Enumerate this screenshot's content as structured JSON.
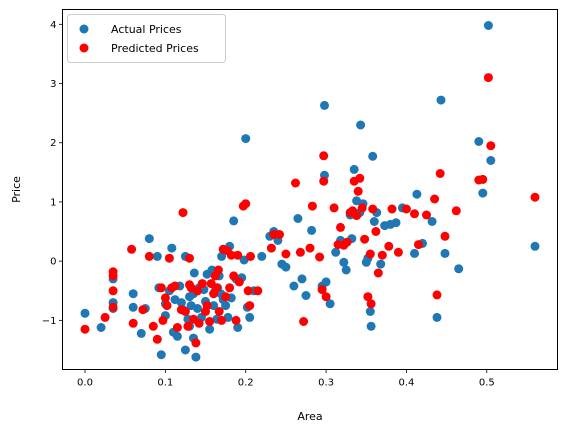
{
  "chart_data": {
    "type": "scatter",
    "title": "",
    "xlabel": "Area",
    "ylabel": "Price",
    "xlim": [
      -0.028,
      0.588
    ],
    "ylim": [
      -1.83,
      4.25
    ],
    "xticks": [
      0.0,
      0.1,
      0.2,
      0.3,
      0.4,
      0.5
    ],
    "xtick_labels": [
      "0.0",
      "0.1",
      "0.2",
      "0.3",
      "0.4",
      "0.5"
    ],
    "yticks": [
      -1,
      0,
      1,
      2,
      3,
      4
    ],
    "ytick_labels": [
      "−1",
      "0",
      "1",
      "2",
      "3",
      "4"
    ],
    "grid": false,
    "legend_position": "top-left",
    "series": [
      {
        "name": "Actual Prices",
        "color": "#1f77b4",
        "points": [
          [
            0.0,
            -0.88
          ],
          [
            0.02,
            -1.12
          ],
          [
            0.035,
            -0.3
          ],
          [
            0.035,
            -0.7
          ],
          [
            0.035,
            -0.8
          ],
          [
            0.06,
            -0.55
          ],
          [
            0.06,
            -0.78
          ],
          [
            0.07,
            -1.22
          ],
          [
            0.075,
            -0.8
          ],
          [
            0.08,
            0.38
          ],
          [
            0.09,
            0.08
          ],
          [
            0.092,
            -0.45
          ],
          [
            0.095,
            -1.58
          ],
          [
            0.1,
            -0.72
          ],
          [
            0.1,
            -0.92
          ],
          [
            0.105,
            -0.5
          ],
          [
            0.108,
            0.22
          ],
          [
            0.11,
            -1.2
          ],
          [
            0.112,
            -0.65
          ],
          [
            0.115,
            -1.27
          ],
          [
            0.118,
            -0.42
          ],
          [
            0.12,
            -0.7
          ],
          [
            0.122,
            -0.82
          ],
          [
            0.125,
            -1.5
          ],
          [
            0.125,
            0.08
          ],
          [
            0.128,
            -0.98
          ],
          [
            0.13,
            -1.1
          ],
          [
            0.13,
            -0.6
          ],
          [
            0.132,
            -0.75
          ],
          [
            0.135,
            -0.55
          ],
          [
            0.135,
            -1.3
          ],
          [
            0.136,
            -0.2
          ],
          [
            0.138,
            -1.62
          ],
          [
            0.14,
            -0.8
          ],
          [
            0.142,
            -0.45
          ],
          [
            0.145,
            -0.95
          ],
          [
            0.148,
            -0.48
          ],
          [
            0.15,
            -0.68
          ],
          [
            0.152,
            -0.22
          ],
          [
            0.155,
            -1.15
          ],
          [
            0.158,
            -0.15
          ],
          [
            0.16,
            -0.75
          ],
          [
            0.162,
            -0.5
          ],
          [
            0.164,
            -0.98
          ],
          [
            0.165,
            -0.45
          ],
          [
            0.167,
            -0.25
          ],
          [
            0.169,
            -0.55
          ],
          [
            0.17,
            0.08
          ],
          [
            0.172,
            -0.65
          ],
          [
            0.175,
            -0.75
          ],
          [
            0.178,
            -0.95
          ],
          [
            0.18,
            0.25
          ],
          [
            0.182,
            -0.62
          ],
          [
            0.185,
            0.68
          ],
          [
            0.188,
            -0.3
          ],
          [
            0.19,
            -1.12
          ],
          [
            0.195,
            -0.28
          ],
          [
            0.198,
            0.02
          ],
          [
            0.2,
            2.07
          ],
          [
            0.202,
            -0.78
          ],
          [
            0.205,
            -0.95
          ],
          [
            0.21,
            -0.5
          ],
          [
            0.22,
            0.08
          ],
          [
            0.23,
            0.42
          ],
          [
            0.235,
            0.5
          ],
          [
            0.24,
            0.35
          ],
          [
            0.245,
            -0.05
          ],
          [
            0.25,
            -0.1
          ],
          [
            0.26,
            -0.42
          ],
          [
            0.265,
            0.72
          ],
          [
            0.27,
            -0.3
          ],
          [
            0.275,
            -0.58
          ],
          [
            0.282,
            0.52
          ],
          [
            0.295,
            -0.42
          ],
          [
            0.298,
            1.45
          ],
          [
            0.298,
            2.63
          ],
          [
            0.3,
            -0.35
          ],
          [
            0.305,
            -0.72
          ],
          [
            0.312,
            0.15
          ],
          [
            0.318,
            0.35
          ],
          [
            0.322,
            -0.02
          ],
          [
            0.325,
            -0.15
          ],
          [
            0.33,
            0.78
          ],
          [
            0.332,
            0.38
          ],
          [
            0.335,
            1.55
          ],
          [
            0.338,
            1.02
          ],
          [
            0.342,
            0.82
          ],
          [
            0.343,
            2.3
          ],
          [
            0.346,
            0.97
          ],
          [
            0.35,
            -0.02
          ],
          [
            0.352,
            0.05
          ],
          [
            0.355,
            -0.85
          ],
          [
            0.356,
            -1.1
          ],
          [
            0.358,
            1.77
          ],
          [
            0.36,
            0.67
          ],
          [
            0.363,
            0.82
          ],
          [
            0.368,
            -0.05
          ],
          [
            0.373,
            0.6
          ],
          [
            0.38,
            0.62
          ],
          [
            0.387,
            0.65
          ],
          [
            0.395,
            0.9
          ],
          [
            0.41,
            0.13
          ],
          [
            0.413,
            1.13
          ],
          [
            0.42,
            0.3
          ],
          [
            0.432,
            0.67
          ],
          [
            0.438,
            -0.95
          ],
          [
            0.443,
            2.72
          ],
          [
            0.448,
            0.13
          ],
          [
            0.465,
            -0.13
          ],
          [
            0.49,
            2.02
          ],
          [
            0.495,
            1.15
          ],
          [
            0.502,
            3.98
          ],
          [
            0.505,
            1.7
          ],
          [
            0.56,
            0.25
          ]
        ]
      },
      {
        "name": "Predicted Prices",
        "color": "#ff0000",
        "points": [
          [
            0.0,
            -1.15
          ],
          [
            0.025,
            -0.95
          ],
          [
            0.035,
            -0.18
          ],
          [
            0.035,
            -0.25
          ],
          [
            0.035,
            -0.5
          ],
          [
            0.035,
            -0.78
          ],
          [
            0.058,
            0.2
          ],
          [
            0.06,
            -1.05
          ],
          [
            0.072,
            -0.82
          ],
          [
            0.08,
            0.08
          ],
          [
            0.085,
            -1.1
          ],
          [
            0.09,
            -1.32
          ],
          [
            0.095,
            -0.45
          ],
          [
            0.097,
            -1.0
          ],
          [
            0.1,
            -0.62
          ],
          [
            0.102,
            -0.75
          ],
          [
            0.105,
            0.05
          ],
          [
            0.108,
            -0.45
          ],
          [
            0.112,
            -0.42
          ],
          [
            0.115,
            -1.12
          ],
          [
            0.12,
            -0.82
          ],
          [
            0.122,
            0.82
          ],
          [
            0.125,
            -0.85
          ],
          [
            0.128,
            -1.1
          ],
          [
            0.13,
            0.05
          ],
          [
            0.13,
            -0.4
          ],
          [
            0.132,
            -0.45
          ],
          [
            0.135,
            -0.98
          ],
          [
            0.138,
            -1.38
          ],
          [
            0.14,
            -0.5
          ],
          [
            0.142,
            -1.05
          ],
          [
            0.146,
            -0.38
          ],
          [
            0.15,
            -0.85
          ],
          [
            0.152,
            -0.75
          ],
          [
            0.155,
            -1.02
          ],
          [
            0.157,
            -0.38
          ],
          [
            0.16,
            -0.55
          ],
          [
            0.162,
            -0.25
          ],
          [
            0.164,
            -0.45
          ],
          [
            0.166,
            -0.15
          ],
          [
            0.167,
            -0.85
          ],
          [
            0.17,
            -1.0
          ],
          [
            0.172,
            0.2
          ],
          [
            0.175,
            -0.6
          ],
          [
            0.177,
            0.18
          ],
          [
            0.18,
            -0.45
          ],
          [
            0.182,
            0.1
          ],
          [
            0.185,
            -0.25
          ],
          [
            0.188,
            -1.0
          ],
          [
            0.19,
            0.1
          ],
          [
            0.192,
            -0.35
          ],
          [
            0.197,
            0.93
          ],
          [
            0.2,
            0.97
          ],
          [
            0.203,
            -0.5
          ],
          [
            0.205,
            -0.75
          ],
          [
            0.206,
            0.08
          ],
          [
            0.215,
            -0.5
          ],
          [
            0.232,
            0.22
          ],
          [
            0.235,
            0.45
          ],
          [
            0.242,
            0.45
          ],
          [
            0.25,
            0.12
          ],
          [
            0.262,
            1.32
          ],
          [
            0.268,
            0.15
          ],
          [
            0.272,
            -1.02
          ],
          [
            0.28,
            0.22
          ],
          [
            0.283,
            0.93
          ],
          [
            0.292,
            0.07
          ],
          [
            0.295,
            -0.48
          ],
          [
            0.297,
            1.35
          ],
          [
            0.297,
            1.78
          ],
          [
            0.3,
            -0.6
          ],
          [
            0.31,
            0.9
          ],
          [
            0.315,
            0.28
          ],
          [
            0.318,
            0.57
          ],
          [
            0.322,
            0.27
          ],
          [
            0.326,
            0.32
          ],
          [
            0.33,
            0.82
          ],
          [
            0.333,
            0.85
          ],
          [
            0.335,
            1.35
          ],
          [
            0.338,
            0.77
          ],
          [
            0.34,
            1.18
          ],
          [
            0.342,
            1.4
          ],
          [
            0.345,
            0.9
          ],
          [
            0.348,
            0.37
          ],
          [
            0.352,
            -0.6
          ],
          [
            0.355,
            0.12
          ],
          [
            0.356,
            -0.72
          ],
          [
            0.358,
            0.88
          ],
          [
            0.362,
            0.5
          ],
          [
            0.365,
            -0.2
          ],
          [
            0.37,
            0.1
          ],
          [
            0.378,
            0.25
          ],
          [
            0.382,
            0.88
          ],
          [
            0.39,
            0.15
          ],
          [
            0.4,
            0.88
          ],
          [
            0.41,
            0.8
          ],
          [
            0.415,
            0.28
          ],
          [
            0.425,
            0.78
          ],
          [
            0.435,
            1.05
          ],
          [
            0.438,
            -0.57
          ],
          [
            0.442,
            1.48
          ],
          [
            0.448,
            0.42
          ],
          [
            0.462,
            0.85
          ],
          [
            0.49,
            1.37
          ],
          [
            0.495,
            1.38
          ],
          [
            0.502,
            3.1
          ],
          [
            0.505,
            1.95
          ],
          [
            0.56,
            1.08
          ]
        ]
      }
    ]
  }
}
